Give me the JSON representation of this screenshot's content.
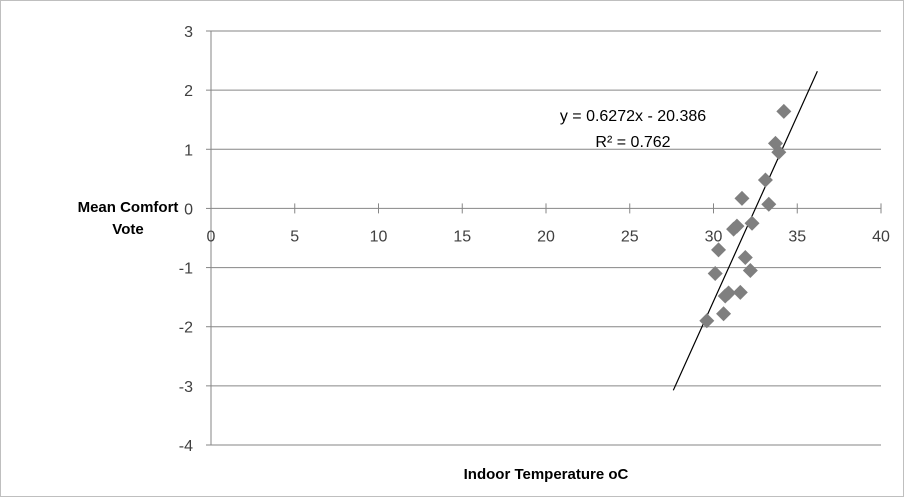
{
  "chart_data": {
    "type": "scatter",
    "xlabel": "Indoor Temperature oC",
    "ylabel": "Mean Comfort Vote",
    "xlim": [
      0,
      40
    ],
    "ylim": [
      -4,
      3
    ],
    "xticks": [
      "0",
      "5",
      "10",
      "15",
      "20",
      "25",
      "30",
      "35",
      "40"
    ],
    "yticks": [
      "3",
      "2",
      "1",
      "0",
      "-1",
      "-2",
      "-3",
      "-4"
    ],
    "grid": "horizontal",
    "marker": "diamond",
    "marker_color": "#7f7f7f",
    "points": [
      {
        "x": 29.6,
        "y": -1.9
      },
      {
        "x": 30.1,
        "y": -1.1
      },
      {
        "x": 30.3,
        "y": -0.7
      },
      {
        "x": 30.6,
        "y": -1.78
      },
      {
        "x": 30.7,
        "y": -1.48
      },
      {
        "x": 30.9,
        "y": -1.43
      },
      {
        "x": 31.2,
        "y": -0.35
      },
      {
        "x": 31.4,
        "y": -0.3
      },
      {
        "x": 31.6,
        "y": -1.42
      },
      {
        "x": 31.7,
        "y": 0.17
      },
      {
        "x": 31.9,
        "y": -0.83
      },
      {
        "x": 32.2,
        "y": -1.05
      },
      {
        "x": 32.3,
        "y": -0.25
      },
      {
        "x": 33.1,
        "y": 0.48
      },
      {
        "x": 33.3,
        "y": 0.07
      },
      {
        "x": 33.7,
        "y": 1.1
      },
      {
        "x": 33.9,
        "y": 0.95
      },
      {
        "x": 34.2,
        "y": 1.64
      }
    ],
    "trendline": {
      "slope": 0.6272,
      "intercept": -20.386,
      "x_range": [
        27.6,
        36.2
      ],
      "equation": "y = 0.6272x - 20.386",
      "r2": "R² = 0.762"
    }
  }
}
